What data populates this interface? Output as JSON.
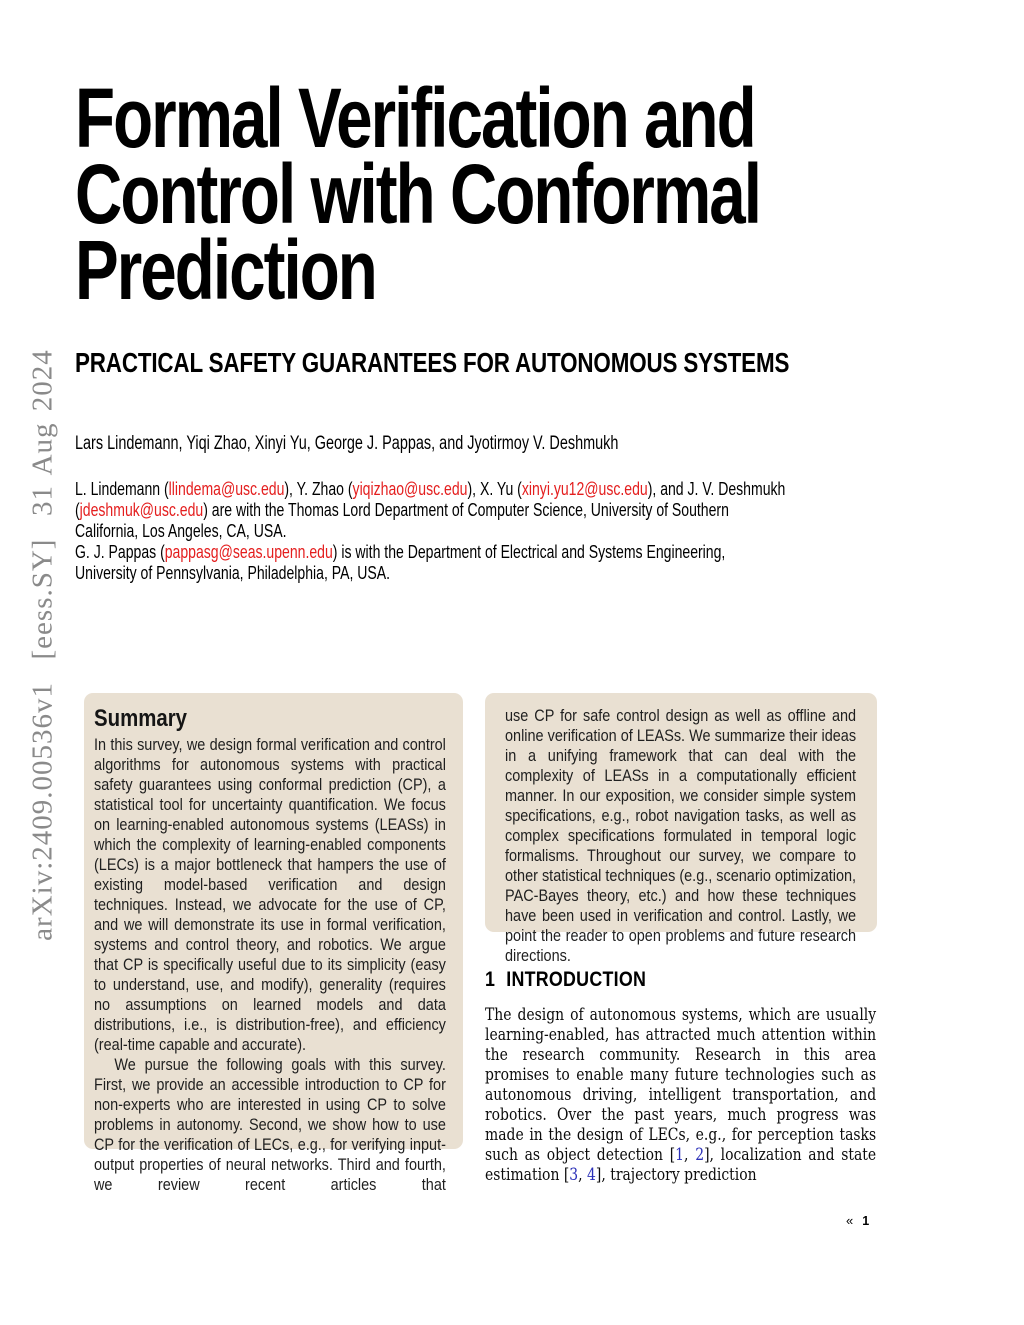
{
  "colors": {
    "email": "#e41e1e",
    "citation": "#2b30b8",
    "box_bg": "#e9e0d2",
    "watermark": "#8a8a8a"
  },
  "watermark": {
    "text": "arXiv:2409.00536v1  [eess.SY]  31 Aug 2024"
  },
  "header": {
    "title": "Formal Verification and\nControl with Conformal\nPrediction",
    "subtitle": "PRACTICAL SAFETY GUARANTEES FOR AUTONOMOUS SYSTEMS",
    "authors": "Lars Lindemann, Yiqi Zhao, Xinyi Yu, George J. Pappas, and Jyotirmoy V. Deshmukh"
  },
  "affiliation": {
    "lines": [
      {
        "segments": [
          {
            "text": "L. Lindemann ("
          },
          {
            "text": "llindema@usc.edu",
            "email": true
          },
          {
            "text": "), Y. Zhao ("
          },
          {
            "text": "yiqizhao@usc.edu",
            "email": true
          },
          {
            "text": "), X. Yu ("
          },
          {
            "text": "xinyi.yu12@usc.edu",
            "email": true
          },
          {
            "text": "), and J. V. Deshmukh"
          }
        ]
      },
      {
        "segments": [
          {
            "text": "("
          },
          {
            "text": "jdeshmuk@usc.edu",
            "email": true
          },
          {
            "text": ") are with the Thomas Lord Department of Computer Science, University of Southern"
          }
        ]
      },
      {
        "segments": [
          {
            "text": "California, Los Angeles, CA, USA."
          }
        ]
      },
      {
        "segments": [
          {
            "text": "G. J. Pappas ("
          },
          {
            "text": "pappasg@seas.upenn.edu",
            "email": true
          },
          {
            "text": ") is with the Department of Electrical and Systems Engineering,"
          }
        ]
      },
      {
        "segments": [
          {
            "text": "University of Pennsylvania, Philadelphia, PA, USA."
          }
        ]
      }
    ]
  },
  "summary": {
    "heading": "Summary",
    "para1": "In this survey, we design formal verification and control algorithms for autonomous systems with practical safety guarantees using conformal prediction (CP), a statistical tool for uncertainty quantification. We focus on learning-enabled autonomous systems (LEASs) in which the complexity of learning-enabled components (LECs) is a major bottleneck that hampers the use of existing model-based verification and design techniques. Instead, we advocate for the use of CP, and we will demonstrate its use in formal verification, systems and control theory, and robotics. We argue that CP is specifically useful due to its simplicity (easy to understand, use, and modify), generality (requires no assumptions on learned models and data distributions, i.e., is distribution-free), and efficiency (real-time capable and accurate).",
    "para2": "We pursue the following goals with this survey. First, we provide an accessible introduction to CP for non-experts who are interested in using CP to solve problems in autonomy. Second, we show how to use CP for the verification of LECs, e.g., for verifying input-output properties of neural networks. Third and fourth, we review recent articles that",
    "para3": "use CP for safe control design as well as offline and online verification of LEASs. We summarize their ideas in a unifying framework that can deal with the complexity of LEASs in a computationally efficient manner. In our exposition, we consider simple system specifications, e.g., robot navigation tasks, as well as complex specifications formulated in temporal logic formalisms. Throughout our survey, we compare to other statistical techniques (e.g., scenario optimization, PAC-Bayes theory, etc.) and how these techniques have been used in verification and control. Lastly, we point the reader to open problems and future research directions."
  },
  "introduction": {
    "number": "1",
    "heading": "INTRODUCTION",
    "segments": [
      {
        "text": "The design of autonomous systems, which are usually learning-enabled, has attracted much attention within the research community. Research in this area promises to enable many future technologies such as autonomous driving, intelligent transportation, and robotics. Over the past years, much progress was made in the design of LECs, e.g., for perception tasks such as object detection ["
      },
      {
        "text": "1",
        "cite": true
      },
      {
        "text": ", "
      },
      {
        "text": "2",
        "cite": true
      },
      {
        "text": "], localization and state estimation ["
      },
      {
        "text": "3",
        "cite": true
      },
      {
        "text": ", "
      },
      {
        "text": "4",
        "cite": true
      },
      {
        "text": "], trajectory prediction"
      }
    ]
  },
  "footer": {
    "marker": "«",
    "page": "1"
  }
}
